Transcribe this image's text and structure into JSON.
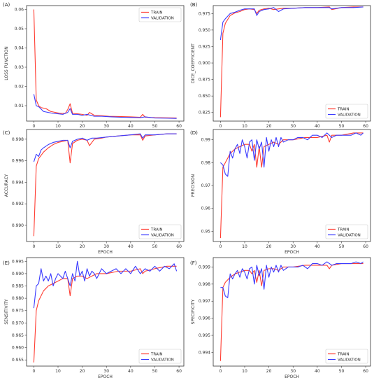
{
  "colors": {
    "train": "#ff3b30",
    "validation": "#3a3aff"
  },
  "chart_data": [
    {
      "type": "line",
      "panel_label": "(A)",
      "xlabel": "EPOCH",
      "ylabel": "LOSS FUNCTION",
      "xlim": [
        -3,
        62
      ],
      "ylim": [
        0.002,
        0.062
      ],
      "xticks": [
        0,
        10,
        20,
        30,
        40,
        50,
        60
      ],
      "yticks": [
        0.01,
        0.02,
        0.03,
        0.04,
        0.05,
        0.06
      ],
      "ytick_labels": [
        "0.01",
        "0.02",
        "0.03",
        "0.04",
        "0.05",
        "0.06"
      ],
      "legend": "top-right",
      "series": [
        {
          "name": "TRAIN",
          "x": [
            0,
            1,
            2,
            3,
            5,
            7,
            9,
            11,
            13,
            14,
            15,
            16,
            18,
            20,
            22,
            23,
            25,
            28,
            31,
            35,
            40,
            44,
            45,
            46,
            50,
            55,
            59
          ],
          "values": [
            0.06,
            0.013,
            0.01,
            0.009,
            0.0085,
            0.007,
            0.0065,
            0.006,
            0.006,
            0.008,
            0.011,
            0.006,
            0.0058,
            0.0055,
            0.005,
            0.0065,
            0.005,
            0.0048,
            0.0045,
            0.0044,
            0.0042,
            0.004,
            0.0055,
            0.004,
            0.0038,
            0.0037,
            0.0036
          ]
        },
        {
          "name": "VALIDATION",
          "x": [
            0,
            1,
            2,
            4,
            6,
            8,
            10,
            12,
            14,
            15,
            16,
            18,
            20,
            22,
            25,
            28,
            32,
            36,
            40,
            44,
            46,
            50,
            55,
            59
          ],
          "values": [
            0.016,
            0.01,
            0.0095,
            0.007,
            0.0065,
            0.006,
            0.0058,
            0.0055,
            0.0065,
            0.0085,
            0.0055,
            0.0055,
            0.005,
            0.0055,
            0.0045,
            0.0045,
            0.0042,
            0.004,
            0.0039,
            0.0038,
            0.0042,
            0.0036,
            0.0035,
            0.0034
          ]
        }
      ]
    },
    {
      "type": "line",
      "panel_label": "(B)",
      "xlabel": "EPOCH",
      "ylabel": "DICE_COEFFICIENT",
      "xlim": [
        -3,
        62
      ],
      "ylim": [
        0.812,
        0.987
      ],
      "xticks": [
        0,
        10,
        20,
        30,
        40,
        50,
        60
      ],
      "yticks": [
        0.825,
        0.85,
        0.875,
        0.9,
        0.925,
        0.95,
        0.975
      ],
      "ytick_labels": [
        "0.825",
        "0.850",
        "0.875",
        "0.900",
        "0.925",
        "0.950",
        "0.975"
      ],
      "legend": "bottom-right",
      "series": [
        {
          "name": "TRAIN",
          "x": [
            0,
            1,
            2,
            4,
            6,
            8,
            10,
            12,
            14,
            15,
            16,
            18,
            20,
            22,
            24,
            26,
            30,
            35,
            40,
            45,
            46,
            50,
            55,
            59
          ],
          "values": [
            0.818,
            0.945,
            0.96,
            0.972,
            0.976,
            0.978,
            0.981,
            0.982,
            0.981,
            0.975,
            0.98,
            0.982,
            0.983,
            0.981,
            0.982,
            0.983,
            0.983,
            0.984,
            0.984,
            0.985,
            0.981,
            0.984,
            0.985,
            0.985
          ]
        },
        {
          "name": "VALIDATION",
          "x": [
            0,
            1,
            2,
            4,
            6,
            8,
            10,
            12,
            14,
            15,
            16,
            18,
            20,
            22,
            24,
            26,
            30,
            35,
            40,
            45,
            46,
            50,
            55,
            59
          ],
          "values": [
            0.935,
            0.962,
            0.967,
            0.975,
            0.977,
            0.98,
            0.982,
            0.982,
            0.982,
            0.972,
            0.978,
            0.981,
            0.982,
            0.984,
            0.978,
            0.982,
            0.983,
            0.984,
            0.984,
            0.984,
            0.982,
            0.984,
            0.984,
            0.985
          ]
        }
      ]
    },
    {
      "type": "line",
      "panel_label": "(C)",
      "xlabel": "EPOCH",
      "ylabel": "ACCURACY",
      "xlim": [
        -3,
        62
      ],
      "ylim": [
        0.9885,
        0.9989
      ],
      "xticks": [
        0,
        10,
        20,
        30,
        40,
        50,
        60
      ],
      "yticks": [
        0.99,
        0.992,
        0.994,
        0.996,
        0.998
      ],
      "ytick_labels": [
        "0.990",
        "0.992",
        "0.994",
        "0.996",
        "0.998"
      ],
      "legend": "bottom-right",
      "series": [
        {
          "name": "TRAIN",
          "x": [
            0,
            1,
            2,
            4,
            6,
            8,
            10,
            12,
            14,
            15,
            16,
            18,
            20,
            22,
            23,
            25,
            28,
            30,
            35,
            40,
            44,
            45,
            46,
            50,
            55,
            59
          ],
          "values": [
            0.989,
            0.9955,
            0.9962,
            0.9968,
            0.9972,
            0.9975,
            0.9977,
            0.9978,
            0.9979,
            0.9958,
            0.9976,
            0.9979,
            0.998,
            0.9979,
            0.9974,
            0.998,
            0.9981,
            0.9982,
            0.9983,
            0.9984,
            0.9984,
            0.9979,
            0.9983,
            0.9984,
            0.9985,
            0.9985
          ]
        },
        {
          "name": "VALIDATION",
          "x": [
            0,
            1,
            2,
            3,
            4,
            6,
            8,
            10,
            12,
            14,
            15,
            16,
            18,
            20,
            22,
            24,
            26,
            30,
            35,
            40,
            44,
            45,
            46,
            50,
            55,
            59
          ],
          "values": [
            0.9959,
            0.9966,
            0.9964,
            0.997,
            0.9972,
            0.9975,
            0.9977,
            0.9978,
            0.9979,
            0.9979,
            0.9972,
            0.9978,
            0.998,
            0.9981,
            0.9979,
            0.9981,
            0.9981,
            0.9982,
            0.9983,
            0.9984,
            0.9985,
            0.9981,
            0.9984,
            0.9984,
            0.9985,
            0.9985
          ]
        }
      ]
    },
    {
      "type": "line",
      "panel_label": "(D)",
      "xlabel": "EPOCH",
      "ylabel": "PRECISION",
      "xlim": [
        -3,
        62
      ],
      "ylim": [
        0.9455,
        0.9945
      ],
      "xticks": [
        0,
        10,
        20,
        30,
        40,
        50,
        60
      ],
      "yticks": [
        0.95,
        0.96,
        0.97,
        0.98,
        0.99
      ],
      "ytick_labels": [
        "0.95",
        "0.96",
        "0.97",
        "0.98",
        "0.99"
      ],
      "legend": "bottom-right",
      "series": [
        {
          "name": "TRAIN",
          "x": [
            0,
            1,
            2,
            4,
            6,
            8,
            10,
            12,
            13,
            14,
            15,
            16,
            17,
            18,
            20,
            22,
            24,
            26,
            28,
            30,
            35,
            40,
            44,
            45,
            46,
            50,
            55,
            59
          ],
          "values": [
            0.947,
            0.978,
            0.98,
            0.984,
            0.986,
            0.987,
            0.988,
            0.988,
            0.985,
            0.988,
            0.978,
            0.987,
            0.978,
            0.987,
            0.988,
            0.989,
            0.988,
            0.99,
            0.99,
            0.99,
            0.991,
            0.991,
            0.992,
            0.989,
            0.992,
            0.992,
            0.993,
            0.993
          ]
        },
        {
          "name": "VALIDATION",
          "x": [
            0,
            1,
            2,
            3,
            4,
            5,
            6,
            7,
            8,
            9,
            10,
            11,
            12,
            13,
            14,
            15,
            16,
            17,
            18,
            19,
            20,
            21,
            22,
            23,
            24,
            25,
            26,
            28,
            30,
            32,
            34,
            36,
            38,
            40,
            42,
            44,
            46,
            48,
            50,
            52,
            54,
            56,
            58,
            59
          ],
          "values": [
            0.98,
            0.979,
            0.975,
            0.974,
            0.985,
            0.982,
            0.986,
            0.988,
            0.984,
            0.99,
            0.987,
            0.982,
            0.989,
            0.99,
            0.981,
            0.99,
            0.986,
            0.989,
            0.978,
            0.991,
            0.985,
            0.99,
            0.987,
            0.991,
            0.987,
            0.991,
            0.989,
            0.99,
            0.99,
            0.991,
            0.991,
            0.99,
            0.992,
            0.992,
            0.991,
            0.993,
            0.991,
            0.992,
            0.992,
            0.992,
            0.992,
            0.993,
            0.992,
            0.993
          ]
        }
      ]
    },
    {
      "type": "line",
      "panel_label": "(E)",
      "xlabel": "EPOCH",
      "ylabel": "SENSITIVITY",
      "xlim": [
        -3,
        62
      ],
      "ylim": [
        0.9525,
        0.9965
      ],
      "xticks": [
        0,
        10,
        20,
        30,
        40,
        50,
        60
      ],
      "yticks": [
        0.955,
        0.96,
        0.965,
        0.97,
        0.975,
        0.98,
        0.985,
        0.99,
        0.995
      ],
      "ytick_labels": [
        "0.955",
        "0.960",
        "0.965",
        "0.970",
        "0.975",
        "0.980",
        "0.985",
        "0.990",
        "0.995"
      ],
      "legend": "bottom-right",
      "series": [
        {
          "name": "TRAIN",
          "x": [
            0,
            1,
            2,
            4,
            6,
            8,
            10,
            12,
            14,
            15,
            16,
            18,
            20,
            22,
            24,
            26,
            30,
            35,
            40,
            44,
            45,
            46,
            50,
            55,
            59
          ],
          "values": [
            0.954,
            0.975,
            0.979,
            0.983,
            0.985,
            0.986,
            0.987,
            0.988,
            0.988,
            0.981,
            0.988,
            0.989,
            0.989,
            0.988,
            0.989,
            0.99,
            0.99,
            0.991,
            0.991,
            0.992,
            0.99,
            0.991,
            0.992,
            0.993,
            0.993
          ]
        },
        {
          "name": "VALIDATION",
          "x": [
            0,
            1,
            2,
            3,
            4,
            5,
            6,
            7,
            8,
            9,
            10,
            11,
            12,
            13,
            14,
            15,
            16,
            17,
            18,
            19,
            20,
            21,
            22,
            23,
            24,
            25,
            26,
            28,
            30,
            32,
            34,
            36,
            38,
            40,
            42,
            44,
            46,
            48,
            50,
            52,
            54,
            56,
            58,
            59
          ],
          "values": [
            0.976,
            0.985,
            0.986,
            0.992,
            0.987,
            0.989,
            0.987,
            0.99,
            0.985,
            0.988,
            0.99,
            0.989,
            0.988,
            0.991,
            0.988,
            0.985,
            0.99,
            0.987,
            0.995,
            0.989,
            0.991,
            0.987,
            0.992,
            0.989,
            0.991,
            0.99,
            0.988,
            0.992,
            0.99,
            0.991,
            0.992,
            0.99,
            0.992,
            0.99,
            0.993,
            0.99,
            0.992,
            0.991,
            0.993,
            0.991,
            0.993,
            0.992,
            0.994,
            0.991
          ]
        }
      ]
    },
    {
      "type": "line",
      "panel_label": "(F)",
      "xlabel": "EPOCH",
      "ylabel": "SPECIFICITY",
      "xlim": [
        -3,
        62
      ],
      "ylim": [
        0.9932,
        0.99955
      ],
      "xticks": [
        0,
        10,
        20,
        30,
        40,
        50,
        60
      ],
      "yticks": [
        0.994,
        0.995,
        0.996,
        0.997,
        0.998,
        0.999
      ],
      "ytick_labels": [
        "0.994",
        "0.995",
        "0.996",
        "0.997",
        "0.998",
        "0.999"
      ],
      "legend": "bottom-right",
      "series": [
        {
          "name": "TRAIN",
          "x": [
            0,
            1,
            2,
            4,
            6,
            8,
            10,
            12,
            13,
            14,
            15,
            16,
            17,
            18,
            20,
            22,
            24,
            26,
            28,
            30,
            35,
            40,
            44,
            45,
            46,
            50,
            55,
            59
          ],
          "values": [
            0.9935,
            0.9978,
            0.9981,
            0.9984,
            0.9986,
            0.9987,
            0.9988,
            0.9988,
            0.9986,
            0.9988,
            0.9981,
            0.9988,
            0.9979,
            0.9988,
            0.9989,
            0.9989,
            0.9988,
            0.999,
            0.999,
            0.999,
            0.9991,
            0.9991,
            0.9991,
            0.9989,
            0.9991,
            0.9992,
            0.9992,
            0.9992
          ]
        },
        {
          "name": "VALIDATION",
          "x": [
            0,
            1,
            2,
            3,
            4,
            5,
            6,
            7,
            8,
            9,
            10,
            11,
            12,
            13,
            14,
            15,
            16,
            17,
            18,
            19,
            20,
            21,
            22,
            23,
            24,
            25,
            26,
            28,
            30,
            32,
            34,
            36,
            38,
            40,
            42,
            44,
            46,
            48,
            50,
            52,
            54,
            56,
            58,
            59
          ],
          "values": [
            0.9978,
            0.9978,
            0.9973,
            0.9972,
            0.9986,
            0.9983,
            0.9986,
            0.9988,
            0.9984,
            0.9989,
            0.9987,
            0.9983,
            0.9989,
            0.999,
            0.998,
            0.9991,
            0.9985,
            0.9989,
            0.9977,
            0.9991,
            0.9984,
            0.999,
            0.9987,
            0.9991,
            0.9987,
            0.9991,
            0.9988,
            0.999,
            0.999,
            0.999,
            0.9991,
            0.9989,
            0.9992,
            0.9992,
            0.9991,
            0.9993,
            0.9991,
            0.9992,
            0.9992,
            0.9992,
            0.9992,
            0.9993,
            0.9992,
            0.9993
          ]
        }
      ]
    }
  ]
}
